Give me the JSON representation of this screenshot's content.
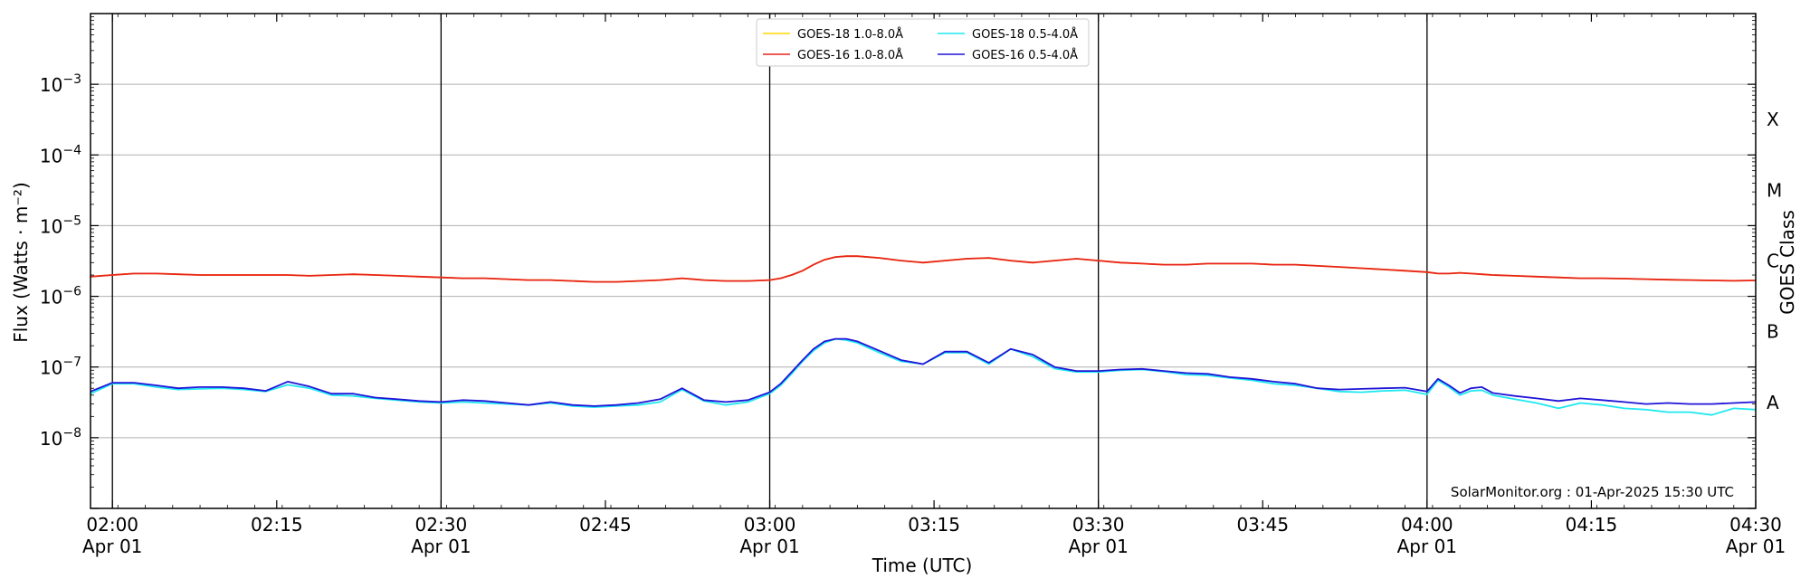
{
  "chart_data": {
    "type": "line",
    "xlabel": "Time (UTC)",
    "ylabel": "Flux (Watts · m⁻²)",
    "ylabel_right": "GOES Class",
    "yscale": "log",
    "xlim_minutes": [
      118,
      270
    ],
    "ylim_exp": [
      -9,
      -2
    ],
    "x_ticks": [
      {
        "m": 120,
        "time": "02:00",
        "date": "Apr 01"
      },
      {
        "m": 135,
        "time": "02:15",
        "date": ""
      },
      {
        "m": 150,
        "time": "02:30",
        "date": "Apr 01"
      },
      {
        "m": 165,
        "time": "02:45",
        "date": ""
      },
      {
        "m": 180,
        "time": "03:00",
        "date": "Apr 01"
      },
      {
        "m": 195,
        "time": "03:15",
        "date": ""
      },
      {
        "m": 210,
        "time": "03:30",
        "date": "Apr 01"
      },
      {
        "m": 225,
        "time": "03:45",
        "date": ""
      },
      {
        "m": 240,
        "time": "04:00",
        "date": "Apr 01"
      },
      {
        "m": 255,
        "time": "04:15",
        "date": ""
      },
      {
        "m": 270,
        "time": "04:30",
        "date": "Apr 01"
      }
    ],
    "y_ticks": [
      {
        "exp": -8,
        "label": "10",
        "sup": "−8"
      },
      {
        "exp": -7,
        "label": "10",
        "sup": "−7"
      },
      {
        "exp": -6,
        "label": "10",
        "sup": "−6"
      },
      {
        "exp": -5,
        "label": "10",
        "sup": "−5"
      },
      {
        "exp": -4,
        "label": "10",
        "sup": "−4"
      },
      {
        "exp": -3,
        "label": "10",
        "sup": "−3"
      }
    ],
    "classes": [
      {
        "label": "A",
        "exp": -7.5
      },
      {
        "label": "B",
        "exp": -6.5
      },
      {
        "label": "C",
        "exp": -5.5
      },
      {
        "label": "M",
        "exp": -4.5
      },
      {
        "label": "X",
        "exp": -3.5
      }
    ],
    "vlines_minutes": [
      120,
      150,
      180,
      210,
      240
    ],
    "legend_position": "top-center",
    "credit": "SolarMonitor.org : 01-Apr-2025 15:30 UTC",
    "series": [
      {
        "name": "GOES-18 1.0-8.0Å",
        "color": "#ffd700",
        "x": [
          118,
          120,
          122,
          124,
          126,
          128,
          130,
          132,
          134,
          136,
          138,
          140,
          142,
          144,
          146,
          148,
          150,
          152,
          154,
          156,
          158,
          160,
          162,
          164,
          166,
          168,
          170,
          172,
          174,
          176,
          178,
          180,
          181,
          182,
          183,
          184,
          185,
          186,
          187,
          188,
          190,
          192,
          194,
          196,
          198,
          200,
          202,
          204,
          206,
          208,
          210,
          212,
          214,
          216,
          218,
          220,
          222,
          224,
          226,
          228,
          230,
          232,
          234,
          236,
          238,
          240,
          241,
          242,
          243,
          244,
          245,
          246,
          248,
          250,
          252,
          254,
          256,
          258,
          260,
          262,
          264,
          266,
          268,
          270
        ],
        "y": [
          1.9e-06,
          2e-06,
          2.1e-06,
          2.1e-06,
          2.05e-06,
          2e-06,
          2e-06,
          2e-06,
          2e-06,
          2e-06,
          1.95e-06,
          2e-06,
          2.05e-06,
          2e-06,
          1.95e-06,
          1.9e-06,
          1.85e-06,
          1.8e-06,
          1.8e-06,
          1.75e-06,
          1.7e-06,
          1.7e-06,
          1.65e-06,
          1.6e-06,
          1.6e-06,
          1.65e-06,
          1.7e-06,
          1.8e-06,
          1.7e-06,
          1.65e-06,
          1.65e-06,
          1.7e-06,
          1.8e-06,
          2e-06,
          2.3e-06,
          2.8e-06,
          3.3e-06,
          3.6e-06,
          3.7e-06,
          3.7e-06,
          3.5e-06,
          3.2e-06,
          3e-06,
          3.2e-06,
          3.4e-06,
          3.5e-06,
          3.2e-06,
          3e-06,
          3.2e-06,
          3.4e-06,
          3.2e-06,
          3e-06,
          2.9e-06,
          2.8e-06,
          2.8e-06,
          2.9e-06,
          2.9e-06,
          2.9e-06,
          2.8e-06,
          2.8e-06,
          2.7e-06,
          2.6e-06,
          2.5e-06,
          2.4e-06,
          2.3e-06,
          2.2e-06,
          2.1e-06,
          2.1e-06,
          2.15e-06,
          2.1e-06,
          2.05e-06,
          2e-06,
          1.95e-06,
          1.9e-06,
          1.85e-06,
          1.8e-06,
          1.8e-06,
          1.78e-06,
          1.75e-06,
          1.72e-06,
          1.7e-06,
          1.68e-06,
          1.66e-06,
          1.68e-06
        ]
      },
      {
        "name": "GOES-16 1.0-8.0Å",
        "color": "#e8231d",
        "x": [
          118,
          120,
          122,
          124,
          126,
          128,
          130,
          132,
          134,
          136,
          138,
          140,
          142,
          144,
          146,
          148,
          150,
          152,
          154,
          156,
          158,
          160,
          162,
          164,
          166,
          168,
          170,
          172,
          174,
          176,
          178,
          180,
          181,
          182,
          183,
          184,
          185,
          186,
          187,
          188,
          190,
          192,
          194,
          196,
          198,
          200,
          202,
          204,
          206,
          208,
          210,
          212,
          214,
          216,
          218,
          220,
          222,
          224,
          226,
          228,
          230,
          232,
          234,
          236,
          238,
          240,
          241,
          242,
          243,
          244,
          245,
          246,
          248,
          250,
          252,
          254,
          256,
          258,
          260,
          262,
          264,
          266,
          268,
          270
        ],
        "y": [
          1.9e-06,
          2e-06,
          2.1e-06,
          2.1e-06,
          2.05e-06,
          2e-06,
          2e-06,
          2e-06,
          2e-06,
          2e-06,
          1.95e-06,
          2e-06,
          2.05e-06,
          2e-06,
          1.95e-06,
          1.9e-06,
          1.85e-06,
          1.8e-06,
          1.8e-06,
          1.75e-06,
          1.7e-06,
          1.7e-06,
          1.65e-06,
          1.6e-06,
          1.6e-06,
          1.65e-06,
          1.7e-06,
          1.8e-06,
          1.7e-06,
          1.65e-06,
          1.65e-06,
          1.7e-06,
          1.8e-06,
          2e-06,
          2.3e-06,
          2.8e-06,
          3.3e-06,
          3.6e-06,
          3.7e-06,
          3.7e-06,
          3.5e-06,
          3.2e-06,
          3e-06,
          3.2e-06,
          3.4e-06,
          3.5e-06,
          3.2e-06,
          3e-06,
          3.2e-06,
          3.4e-06,
          3.2e-06,
          3e-06,
          2.9e-06,
          2.8e-06,
          2.8e-06,
          2.9e-06,
          2.9e-06,
          2.9e-06,
          2.8e-06,
          2.8e-06,
          2.7e-06,
          2.6e-06,
          2.5e-06,
          2.4e-06,
          2.3e-06,
          2.2e-06,
          2.1e-06,
          2.1e-06,
          2.15e-06,
          2.1e-06,
          2.05e-06,
          2e-06,
          1.95e-06,
          1.9e-06,
          1.85e-06,
          1.8e-06,
          1.8e-06,
          1.78e-06,
          1.75e-06,
          1.72e-06,
          1.7e-06,
          1.68e-06,
          1.66e-06,
          1.68e-06
        ]
      },
      {
        "name": "GOES-18 0.5-4.0Å",
        "color": "#1fe8f0",
        "x": [
          118,
          120,
          122,
          124,
          126,
          128,
          130,
          132,
          134,
          136,
          138,
          140,
          142,
          144,
          146,
          148,
          150,
          152,
          154,
          156,
          158,
          160,
          162,
          164,
          166,
          168,
          170,
          172,
          174,
          176,
          178,
          180,
          181,
          182,
          183,
          184,
          185,
          186,
          187,
          188,
          190,
          192,
          194,
          196,
          198,
          200,
          202,
          204,
          206,
          208,
          210,
          212,
          214,
          216,
          218,
          220,
          222,
          224,
          226,
          228,
          230,
          232,
          234,
          236,
          238,
          240,
          241,
          242,
          243,
          244,
          245,
          246,
          248,
          250,
          252,
          254,
          256,
          258,
          260,
          262,
          264,
          266,
          268,
          270
        ],
        "y": [
          4.2e-08,
          5.8e-08,
          5.8e-08,
          5.2e-08,
          4.8e-08,
          4.9e-08,
          5e-08,
          4.8e-08,
          4.5e-08,
          5.6e-08,
          5e-08,
          4e-08,
          3.9e-08,
          3.6e-08,
          3.4e-08,
          3.2e-08,
          3.1e-08,
          3.2e-08,
          3.1e-08,
          3e-08,
          2.9e-08,
          3.1e-08,
          2.8e-08,
          2.7e-08,
          2.8e-08,
          2.9e-08,
          3.2e-08,
          4.8e-08,
          3.3e-08,
          2.9e-08,
          3.2e-08,
          4.2e-08,
          5.5e-08,
          8e-08,
          1.2e-07,
          1.7e-07,
          2.2e-07,
          2.5e-07,
          2.4e-07,
          2.2e-07,
          1.6e-07,
          1.2e-07,
          1.1e-07,
          1.6e-07,
          1.6e-07,
          1.1e-07,
          1.8e-07,
          1.4e-07,
          9.5e-08,
          8.5e-08,
          8.5e-08,
          9e-08,
          9.2e-08,
          8.6e-08,
          7.8e-08,
          7.6e-08,
          7e-08,
          6.5e-08,
          5.8e-08,
          5.5e-08,
          5e-08,
          4.5e-08,
          4.4e-08,
          4.6e-08,
          4.7e-08,
          4.1e-08,
          6.5e-08,
          5.2e-08,
          4e-08,
          4.6e-08,
          4.7e-08,
          4e-08,
          3.5e-08,
          3.1e-08,
          2.6e-08,
          3.1e-08,
          2.9e-08,
          2.6e-08,
          2.5e-08,
          2.3e-08,
          2.3e-08,
          2.1e-08,
          2.6e-08,
          2.5e-08
        ]
      },
      {
        "name": "GOES-16 0.5-4.0Å",
        "color": "#2014d8",
        "x": [
          118,
          120,
          122,
          124,
          126,
          128,
          130,
          132,
          134,
          136,
          138,
          140,
          142,
          144,
          146,
          148,
          150,
          152,
          154,
          156,
          158,
          160,
          162,
          164,
          166,
          168,
          170,
          172,
          174,
          176,
          178,
          180,
          181,
          182,
          183,
          184,
          185,
          186,
          187,
          188,
          190,
          192,
          194,
          196,
          198,
          200,
          202,
          204,
          206,
          208,
          210,
          212,
          214,
          216,
          218,
          220,
          222,
          224,
          226,
          228,
          230,
          232,
          234,
          236,
          238,
          240,
          241,
          242,
          243,
          244,
          245,
          246,
          248,
          250,
          252,
          254,
          256,
          258,
          260,
          262,
          264,
          266,
          268,
          270
        ],
        "y": [
          4.5e-08,
          6e-08,
          6e-08,
          5.5e-08,
          5e-08,
          5.2e-08,
          5.2e-08,
          5e-08,
          4.6e-08,
          6.2e-08,
          5.3e-08,
          4.2e-08,
          4.2e-08,
          3.7e-08,
          3.5e-08,
          3.3e-08,
          3.2e-08,
          3.4e-08,
          3.3e-08,
          3.1e-08,
          2.9e-08,
          3.2e-08,
          2.9e-08,
          2.8e-08,
          2.9e-08,
          3.1e-08,
          3.5e-08,
          5e-08,
          3.4e-08,
          3.2e-08,
          3.4e-08,
          4.4e-08,
          5.8e-08,
          8.5e-08,
          1.25e-07,
          1.8e-07,
          2.3e-07,
          2.5e-07,
          2.5e-07,
          2.3e-07,
          1.7e-07,
          1.25e-07,
          1.1e-07,
          1.65e-07,
          1.65e-07,
          1.15e-07,
          1.8e-07,
          1.5e-07,
          1e-07,
          8.8e-08,
          8.8e-08,
          9.2e-08,
          9.4e-08,
          8.8e-08,
          8.2e-08,
          8e-08,
          7.2e-08,
          6.8e-08,
          6.2e-08,
          5.8e-08,
          5e-08,
          4.8e-08,
          4.9e-08,
          5e-08,
          5.1e-08,
          4.5e-08,
          6.8e-08,
          5.5e-08,
          4.3e-08,
          5e-08,
          5.2e-08,
          4.3e-08,
          3.9e-08,
          3.6e-08,
          3.3e-08,
          3.6e-08,
          3.4e-08,
          3.2e-08,
          3e-08,
          3.1e-08,
          3e-08,
          3e-08,
          3.1e-08,
          3.2e-08
        ]
      }
    ]
  }
}
